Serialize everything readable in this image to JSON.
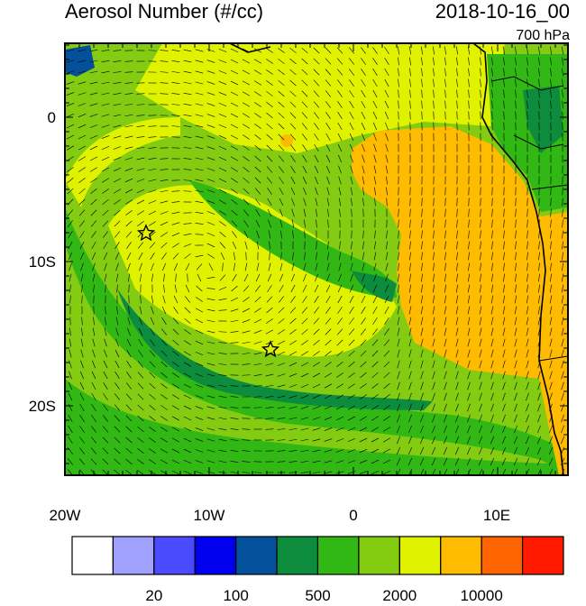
{
  "header": {
    "title": "Aerosol Number (#/cc)",
    "time": "2018-10-16_00",
    "level": "700 hPa"
  },
  "map": {
    "lat_labels": [
      "0",
      "10S",
      "20S"
    ],
    "lon_labels": [
      "20W",
      "10W",
      "0",
      "10E"
    ]
  },
  "colorbar": {
    "colors": [
      "#ffffff",
      "#a0a0ff",
      "#4a4aff",
      "#0000ee",
      "#05509a",
      "#0c8c3c",
      "#32b814",
      "#84cc12",
      "#e0f200",
      "#ffbb00",
      "#ff6400",
      "#ff1a00"
    ],
    "labels": [
      "20",
      "100",
      "500",
      "2000",
      "10000"
    ]
  }
}
